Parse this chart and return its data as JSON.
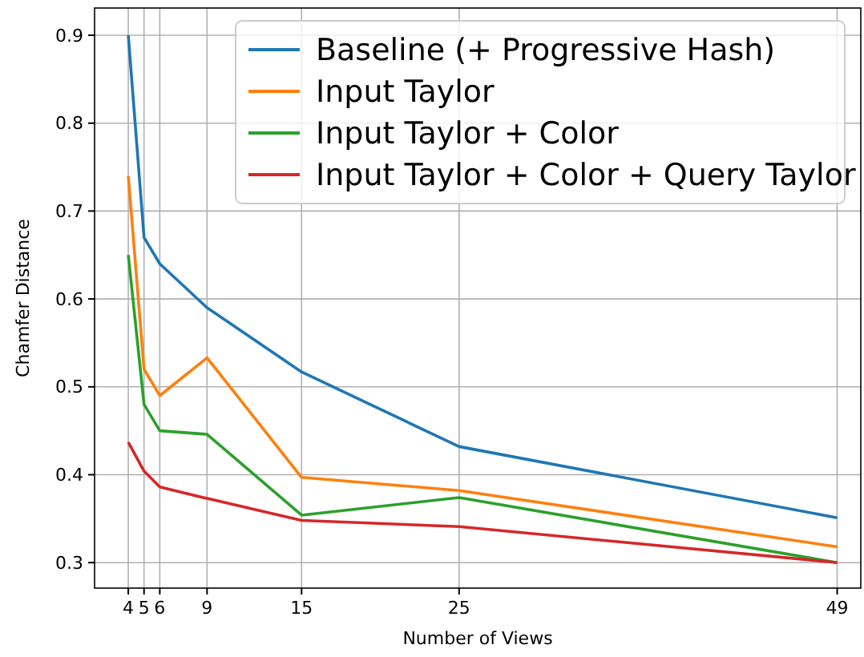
{
  "chart_data": {
    "type": "line",
    "xlabel": "Number of Views",
    "ylabel": "Chamfer Distance",
    "x": [
      4,
      5,
      6,
      9,
      15,
      25,
      49
    ],
    "series": [
      {
        "name": "Baseline (+ Progressive Hash)",
        "color": "#1f77b4",
        "values": [
          0.9,
          0.67,
          0.64,
          0.59,
          0.517,
          0.432,
          0.351
        ]
      },
      {
        "name": "Input Taylor",
        "color": "#ff7f0e",
        "values": [
          0.74,
          0.52,
          0.49,
          0.533,
          0.397,
          0.382,
          0.318
        ]
      },
      {
        "name": "Input Taylor + Color",
        "color": "#2ca02c",
        "values": [
          0.65,
          0.48,
          0.45,
          0.446,
          0.354,
          0.374,
          0.3
        ]
      },
      {
        "name": "Input Taylor + Color + Query Taylor",
        "color": "#d62728",
        "values": [
          0.437,
          0.404,
          0.386,
          0.373,
          0.348,
          0.341,
          0.3
        ]
      }
    ],
    "xlim": [
      1.86,
      50.5
    ],
    "xticks": [
      4,
      5,
      6,
      9,
      15,
      25,
      49
    ],
    "ylim": [
      0.271,
      0.931
    ],
    "yticks": [
      0.3,
      0.4,
      0.5,
      0.6,
      0.7,
      0.8,
      0.9
    ],
    "grid": true,
    "legend": "top right",
    "marker": "none",
    "line_style": "solid"
  }
}
